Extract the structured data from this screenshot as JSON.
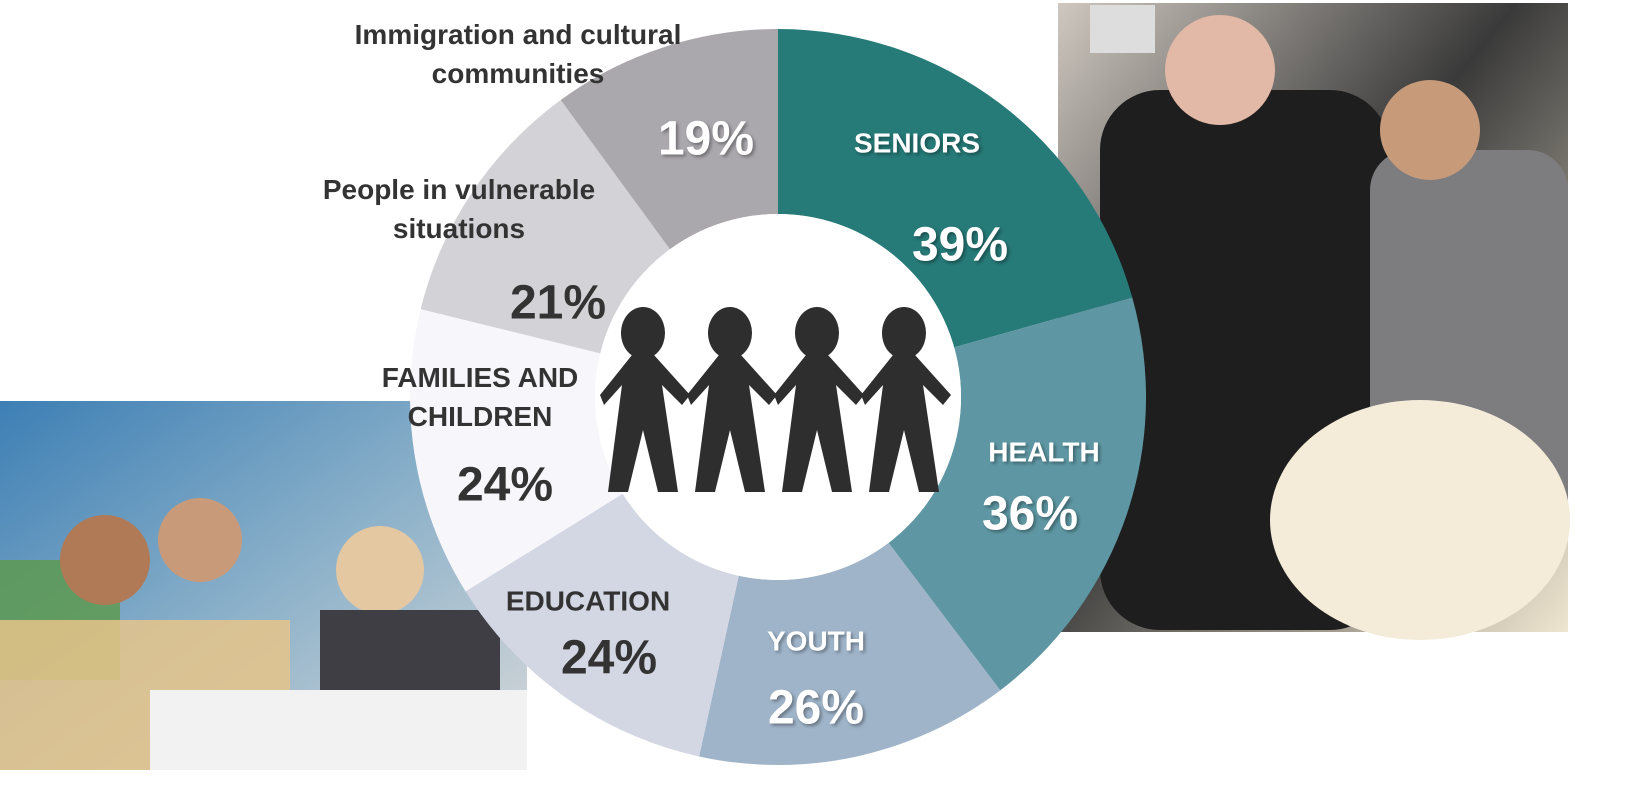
{
  "chart_data": {
    "type": "donut",
    "categories": [
      "SENIORS",
      "HEALTH",
      "YOUTH",
      "EDUCATION",
      "FAMILIES AND CHILDREN",
      "People in vulnerable situations",
      "Immigration and cultural communities"
    ],
    "values": [
      39,
      36,
      26,
      24,
      24,
      21,
      19
    ],
    "value_labels": [
      "39%",
      "36%",
      "26%",
      "24%",
      "24%",
      "21%",
      "19%"
    ],
    "colors": [
      "#267a78",
      "#5e97a3",
      "#9fb4c9",
      "#d3d6e3",
      "#f7f6fb",
      "#d3d2d6",
      "#aaa8ad"
    ]
  }
}
